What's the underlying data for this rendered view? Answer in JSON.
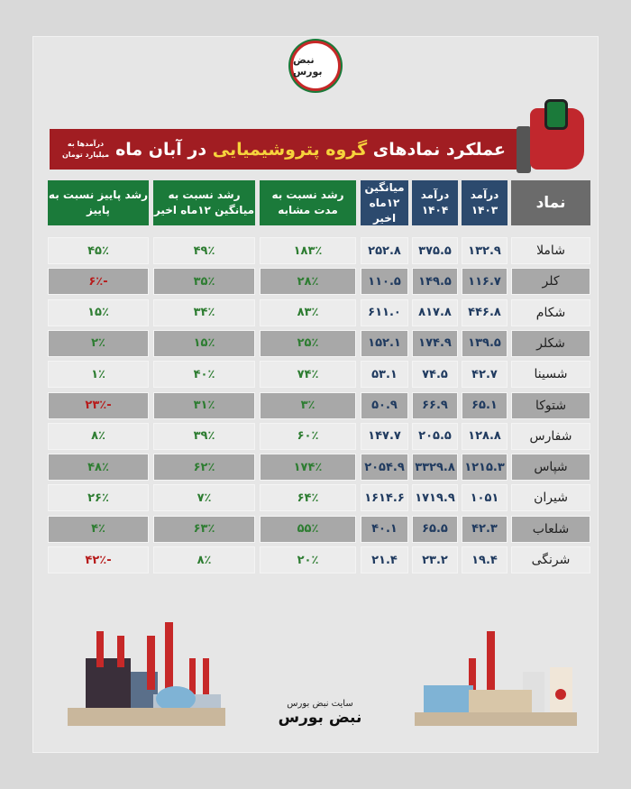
{
  "brand": {
    "logo_text": "نبض بورس",
    "site_label": "سایت نبض بورس",
    "site_logo": "نبض بورس"
  },
  "title": {
    "part1": "عملکرد نمادهای ",
    "highlight": "گروه پتروشیمیایی",
    "part2": " در آبان ماه",
    "note": "درآمدها به میلیارد تومان"
  },
  "colors": {
    "banner": "#a11d22",
    "highlight": "#f6d33c",
    "header_green": "#1b7a3a",
    "header_blue": "#2c4a6e",
    "header_gray": "#6b6b6b",
    "positive": "#2e7d32",
    "negative": "#b71c1c"
  },
  "headers": [
    "نماد",
    "درآمد ۱۴۰۳",
    "درآمد ۱۴۰۴",
    "میانگین ۱۲ماه اخیر",
    "رشد نسبت به مدت مشابه",
    "رشد نسبت به میانگین ۱۲ماه اخیر",
    "رشد پاییز نسبت به پاییز"
  ],
  "rows": [
    [
      "شاملا",
      "۱۳۲.۹",
      "۳۷۵.۵",
      "۲۵۲.۸",
      "۱۸۳٪",
      "۴۹٪",
      "۴۵٪"
    ],
    [
      "کلر",
      "۱۱۶.۷",
      "۱۴۹.۵",
      "۱۱۰.۵",
      "۲۸٪",
      "۳۵٪",
      "-۶٪"
    ],
    [
      "شکام",
      "۴۴۶.۸",
      "۸۱۷.۸",
      "۶۱۱.۰",
      "۸۳٪",
      "۳۴٪",
      "۱۵٪"
    ],
    [
      "شکلر",
      "۱۳۹.۵",
      "۱۷۴.۹",
      "۱۵۲.۱",
      "۲۵٪",
      "۱۵٪",
      "۲٪"
    ],
    [
      "شسینا",
      "۴۲.۷",
      "۷۴.۵",
      "۵۳.۱",
      "۷۴٪",
      "۴۰٪",
      "۱٪"
    ],
    [
      "شتوکا",
      "۶۵.۱",
      "۶۶.۹",
      "۵۰.۹",
      "۳٪",
      "۳۱٪",
      "-۲۳٪"
    ],
    [
      "شفارس",
      "۱۲۸.۸",
      "۲۰۵.۵",
      "۱۴۷.۷",
      "۶۰٪",
      "۳۹٪",
      "۸٪"
    ],
    [
      "شپاس",
      "۱۲۱۵.۳",
      "۳۳۲۹.۸",
      "۲۰۵۴.۹",
      "۱۷۴٪",
      "۶۲٪",
      "۴۸٪"
    ],
    [
      "شیران",
      "۱۰۵۱",
      "۱۷۱۹.۹",
      "۱۶۱۴.۶",
      "۶۴٪",
      "۷٪",
      "۲۶٪"
    ],
    [
      "شلعاب",
      "۴۲.۳",
      "۶۵.۵",
      "۴۰.۱",
      "۵۵٪",
      "۶۳٪",
      "۴٪"
    ],
    [
      "شرنگی",
      "۱۹.۴",
      "۲۳.۲",
      "۲۱.۴",
      "۲۰٪",
      "۸٪",
      "-۴۲٪"
    ]
  ]
}
